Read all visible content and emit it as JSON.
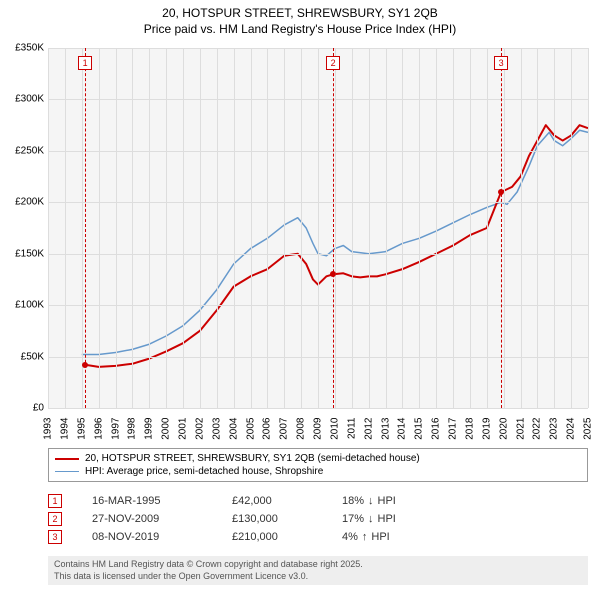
{
  "title": {
    "line1": "20, HOTSPUR STREET, SHREWSBURY, SY1 2QB",
    "line2": "Price paid vs. HM Land Registry's House Price Index (HPI)",
    "fontsize": 12,
    "color": "#000000"
  },
  "chart": {
    "type": "line",
    "background_color": "#f5f5f5",
    "grid_color": "#dddddd",
    "x": {
      "min": 1993,
      "max": 2025,
      "step": 1,
      "labels": [
        "1993",
        "1994",
        "1995",
        "1996",
        "1997",
        "1998",
        "1999",
        "2000",
        "2001",
        "2002",
        "2003",
        "2004",
        "2005",
        "2006",
        "2007",
        "2008",
        "2009",
        "2010",
        "2011",
        "2012",
        "2013",
        "2014",
        "2015",
        "2016",
        "2017",
        "2018",
        "2019",
        "2020",
        "2021",
        "2022",
        "2023",
        "2024",
        "2025"
      ],
      "label_fontsize": 10
    },
    "y": {
      "min": 0,
      "max": 350000,
      "step": 50000,
      "labels": [
        "£0",
        "£50K",
        "£100K",
        "£150K",
        "£200K",
        "£250K",
        "£300K",
        "£350K"
      ],
      "label_fontsize": 10
    },
    "series": [
      {
        "name": "property",
        "label": "20, HOTSPUR STREET, SHREWSBURY, SY1 2QB (semi-detached house)",
        "color": "#cc0000",
        "line_width": 2,
        "points": [
          [
            1995.2,
            42000
          ],
          [
            1996,
            40000
          ],
          [
            1997,
            41000
          ],
          [
            1998,
            43000
          ],
          [
            1999,
            48000
          ],
          [
            2000,
            55000
          ],
          [
            2001,
            63000
          ],
          [
            2002,
            75000
          ],
          [
            2003,
            95000
          ],
          [
            2004,
            118000
          ],
          [
            2005,
            128000
          ],
          [
            2006,
            135000
          ],
          [
            2007,
            148000
          ],
          [
            2007.8,
            150000
          ],
          [
            2008.3,
            140000
          ],
          [
            2008.7,
            125000
          ],
          [
            2009,
            120000
          ],
          [
            2009.5,
            128000
          ],
          [
            2009.9,
            130000
          ],
          [
            2010.5,
            131000
          ],
          [
            2011,
            128000
          ],
          [
            2011.5,
            127000
          ],
          [
            2012,
            128000
          ],
          [
            2012.5,
            128000
          ],
          [
            2013,
            130000
          ],
          [
            2014,
            135000
          ],
          [
            2015,
            142000
          ],
          [
            2016,
            150000
          ],
          [
            2017,
            158000
          ],
          [
            2018,
            168000
          ],
          [
            2019,
            175000
          ],
          [
            2019.85,
            210000
          ],
          [
            2020.5,
            215000
          ],
          [
            2021,
            225000
          ],
          [
            2021.5,
            245000
          ],
          [
            2022,
            260000
          ],
          [
            2022.5,
            275000
          ],
          [
            2023,
            265000
          ],
          [
            2023.5,
            260000
          ],
          [
            2024,
            265000
          ],
          [
            2024.5,
            275000
          ],
          [
            2025,
            272000
          ]
        ]
      },
      {
        "name": "hpi",
        "label": "HPI: Average price, semi-detached house, Shropshire",
        "color": "#6699cc",
        "line_width": 1.5,
        "points": [
          [
            1995,
            52000
          ],
          [
            1996,
            52000
          ],
          [
            1997,
            54000
          ],
          [
            1998,
            57000
          ],
          [
            1999,
            62000
          ],
          [
            2000,
            70000
          ],
          [
            2001,
            80000
          ],
          [
            2002,
            95000
          ],
          [
            2003,
            115000
          ],
          [
            2004,
            140000
          ],
          [
            2005,
            155000
          ],
          [
            2006,
            165000
          ],
          [
            2007,
            178000
          ],
          [
            2007.8,
            185000
          ],
          [
            2008.3,
            175000
          ],
          [
            2008.7,
            160000
          ],
          [
            2009,
            150000
          ],
          [
            2009.5,
            148000
          ],
          [
            2010,
            155000
          ],
          [
            2010.5,
            158000
          ],
          [
            2011,
            152000
          ],
          [
            2012,
            150000
          ],
          [
            2013,
            152000
          ],
          [
            2014,
            160000
          ],
          [
            2015,
            165000
          ],
          [
            2016,
            172000
          ],
          [
            2017,
            180000
          ],
          [
            2018,
            188000
          ],
          [
            2019,
            195000
          ],
          [
            2019.85,
            200000
          ],
          [
            2020.2,
            198000
          ],
          [
            2020.8,
            210000
          ],
          [
            2021.5,
            235000
          ],
          [
            2022,
            255000
          ],
          [
            2022.7,
            268000
          ],
          [
            2023,
            260000
          ],
          [
            2023.5,
            255000
          ],
          [
            2024,
            262000
          ],
          [
            2024.5,
            270000
          ],
          [
            2025,
            268000
          ]
        ]
      }
    ],
    "markers": [
      {
        "x": 1995.2,
        "y": 42000,
        "color": "#cc0000"
      },
      {
        "x": 2009.9,
        "y": 130000,
        "color": "#cc0000"
      },
      {
        "x": 2019.85,
        "y": 210000,
        "color": "#cc0000"
      }
    ],
    "event_lines": [
      {
        "num": "1",
        "x": 1995.2
      },
      {
        "num": "2",
        "x": 2009.9
      },
      {
        "num": "3",
        "x": 2019.85
      }
    ],
    "event_line_color": "#cc0000"
  },
  "legend": {
    "items": [
      {
        "color": "#cc0000",
        "width": 2,
        "label": "20, HOTSPUR STREET, SHREWSBURY, SY1 2QB (semi-detached house)"
      },
      {
        "color": "#6699cc",
        "width": 1.5,
        "label": "HPI: Average price, semi-detached house, Shropshire"
      }
    ],
    "fontsize": 10,
    "border_color": "#999999"
  },
  "events_table": {
    "rows": [
      {
        "num": "1",
        "date": "16-MAR-1995",
        "price": "£42,000",
        "hpi_pct": "18%",
        "hpi_dir": "down",
        "hpi_label": "HPI"
      },
      {
        "num": "2",
        "date": "27-NOV-2009",
        "price": "£130,000",
        "hpi_pct": "17%",
        "hpi_dir": "down",
        "hpi_label": "HPI"
      },
      {
        "num": "3",
        "date": "08-NOV-2019",
        "price": "£210,000",
        "hpi_pct": "4%",
        "hpi_dir": "up",
        "hpi_label": "HPI"
      }
    ],
    "fontsize": 11,
    "marker_border_color": "#cc0000"
  },
  "footer": {
    "line1": "Contains HM Land Registry data © Crown copyright and database right 2025.",
    "line2": "This data is licensed under the Open Government Licence v3.0.",
    "background_color": "#eeeeee",
    "fontsize": 9,
    "color": "#555555"
  }
}
